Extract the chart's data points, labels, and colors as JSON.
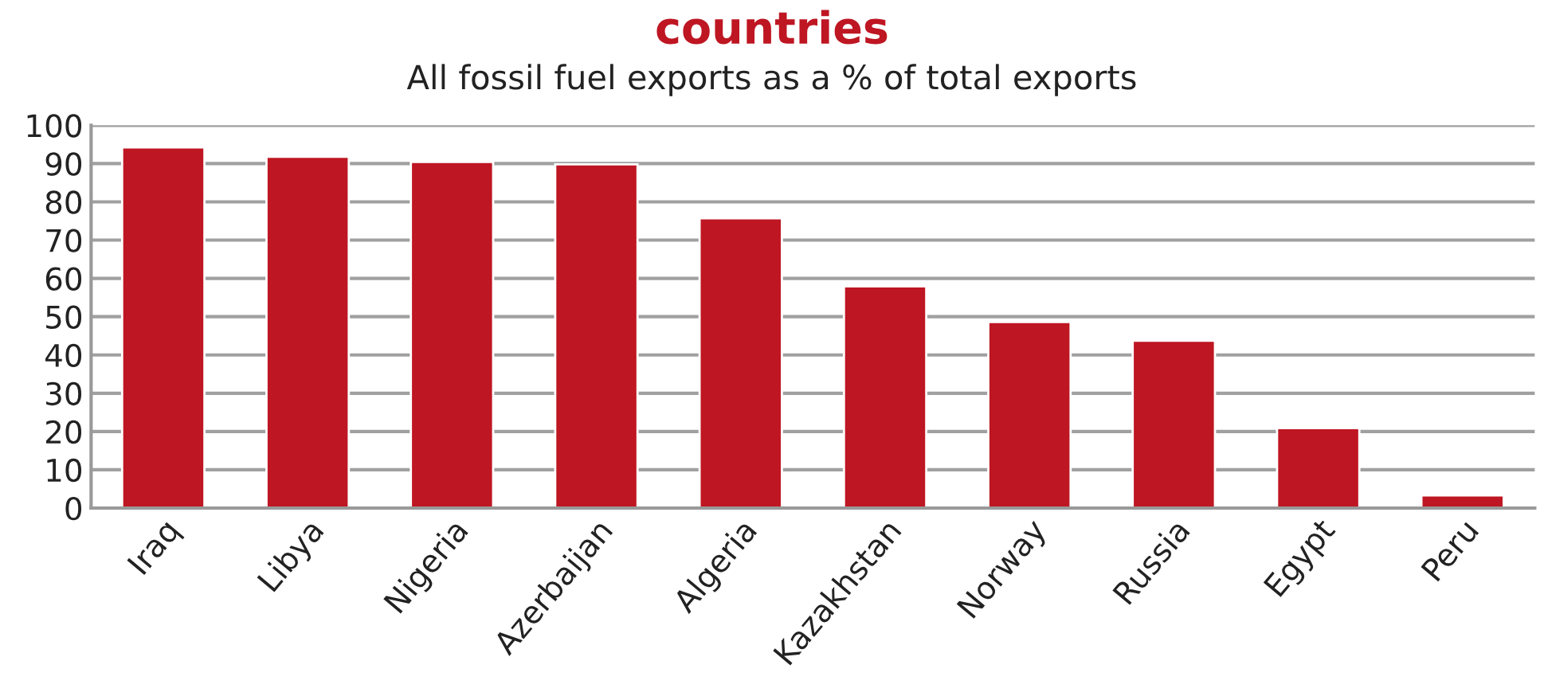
{
  "chart_data": {
    "type": "bar",
    "title": "countries",
    "subtitle": "All fossil fuel exports as a % of total exports",
    "categories": [
      "Iraq",
      "Libya",
      "Nigeria",
      "Azerbaijan",
      "Algeria",
      "Kazakhstan",
      "Norway",
      "Russia",
      "Egypt",
      "Peru"
    ],
    "values": [
      94.2,
      91.8,
      90.4,
      89.8,
      75.7,
      57.9,
      48.6,
      43.7,
      20.9,
      3.3
    ],
    "color": "#be1622",
    "ylim": [
      0,
      100
    ],
    "yticks": [
      0,
      10,
      20,
      30,
      40,
      50,
      60,
      70,
      80,
      90,
      100
    ],
    "grid": "y",
    "legend": false
  }
}
